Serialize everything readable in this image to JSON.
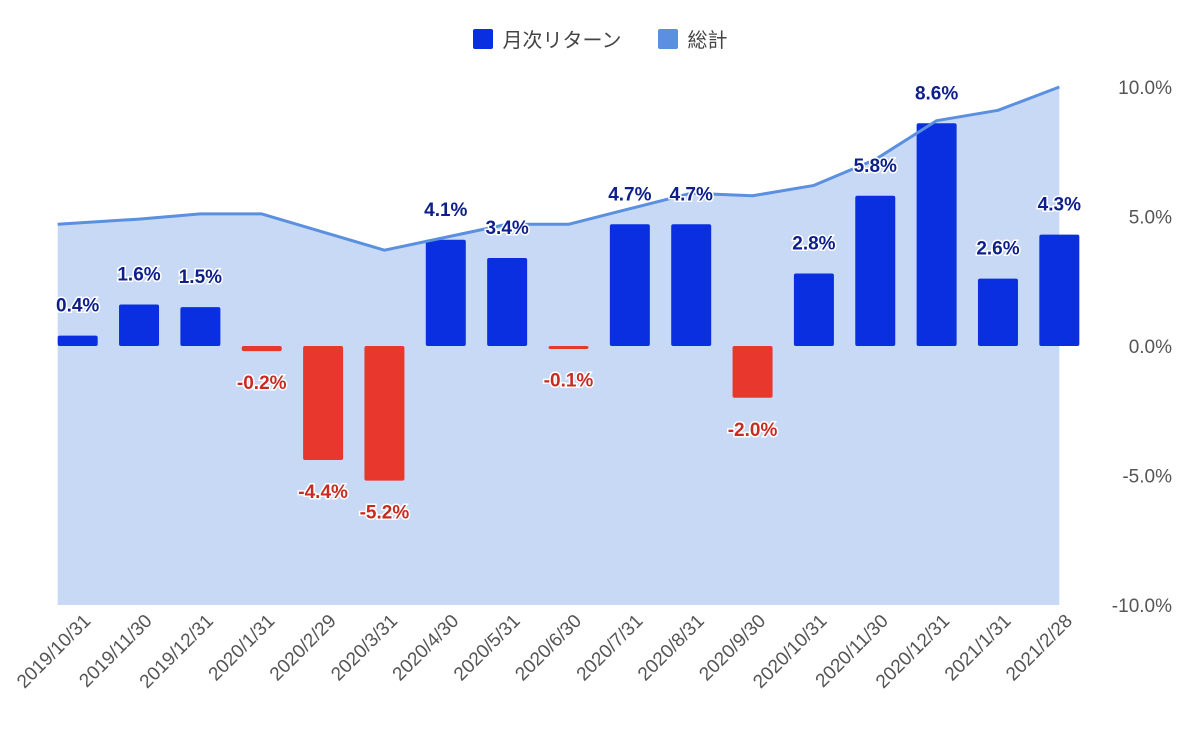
{
  "colors": {
    "positive_bar": "#0a2fe0",
    "negative_bar": "#e8382e",
    "line": "#5b8fe0",
    "area": "#c8d9f5",
    "positive_label": "#0d1f8a",
    "negative_label": "#c82b22",
    "tick": "#555555"
  },
  "legend": {
    "monthly": "月次リターン",
    "total": "総計"
  },
  "chart_data": {
    "type": "bar",
    "title": "",
    "xlabel": "",
    "ylabel": "",
    "ylim": [
      -10,
      10
    ],
    "y_ticks": [
      "10.0%",
      "5.0%",
      "0.0%",
      "-5.0%",
      "-10.0%"
    ],
    "y_tick_values": [
      10,
      5,
      0,
      -5,
      -10
    ],
    "categories": [
      "2019/10/31",
      "2019/11/30",
      "2019/12/31",
      "2020/1/31",
      "2020/2/29",
      "2020/3/31",
      "2020/4/30",
      "2020/5/31",
      "2020/6/30",
      "2020/7/31",
      "2020/8/31",
      "2020/9/30",
      "2020/10/31",
      "2020/11/30",
      "2020/12/31",
      "2021/1/31",
      "2021/2/28"
    ],
    "series": [
      {
        "name": "月次リターン",
        "type": "bar",
        "values": [
          0.4,
          1.6,
          1.5,
          -0.2,
          -4.4,
          -5.2,
          4.1,
          3.4,
          -0.1,
          4.7,
          4.7,
          -2.0,
          2.8,
          5.8,
          8.6,
          2.6,
          4.3
        ],
        "labels": [
          "0.4%",
          "1.6%",
          "1.5%",
          "-0.2%",
          "-4.4%",
          "-5.2%",
          "4.1%",
          "3.4%",
          "-0.1%",
          "4.7%",
          "4.7%",
          "-2.0%",
          "2.8%",
          "5.8%",
          "8.6%",
          "2.6%",
          "4.3%"
        ]
      },
      {
        "name": "総計",
        "type": "area",
        "values": [
          4.7,
          4.9,
          5.1,
          5.1,
          4.4,
          3.7,
          4.2,
          4.7,
          4.7,
          5.3,
          5.9,
          5.8,
          6.2,
          7.2,
          8.7,
          9.1,
          10.0
        ]
      }
    ]
  }
}
